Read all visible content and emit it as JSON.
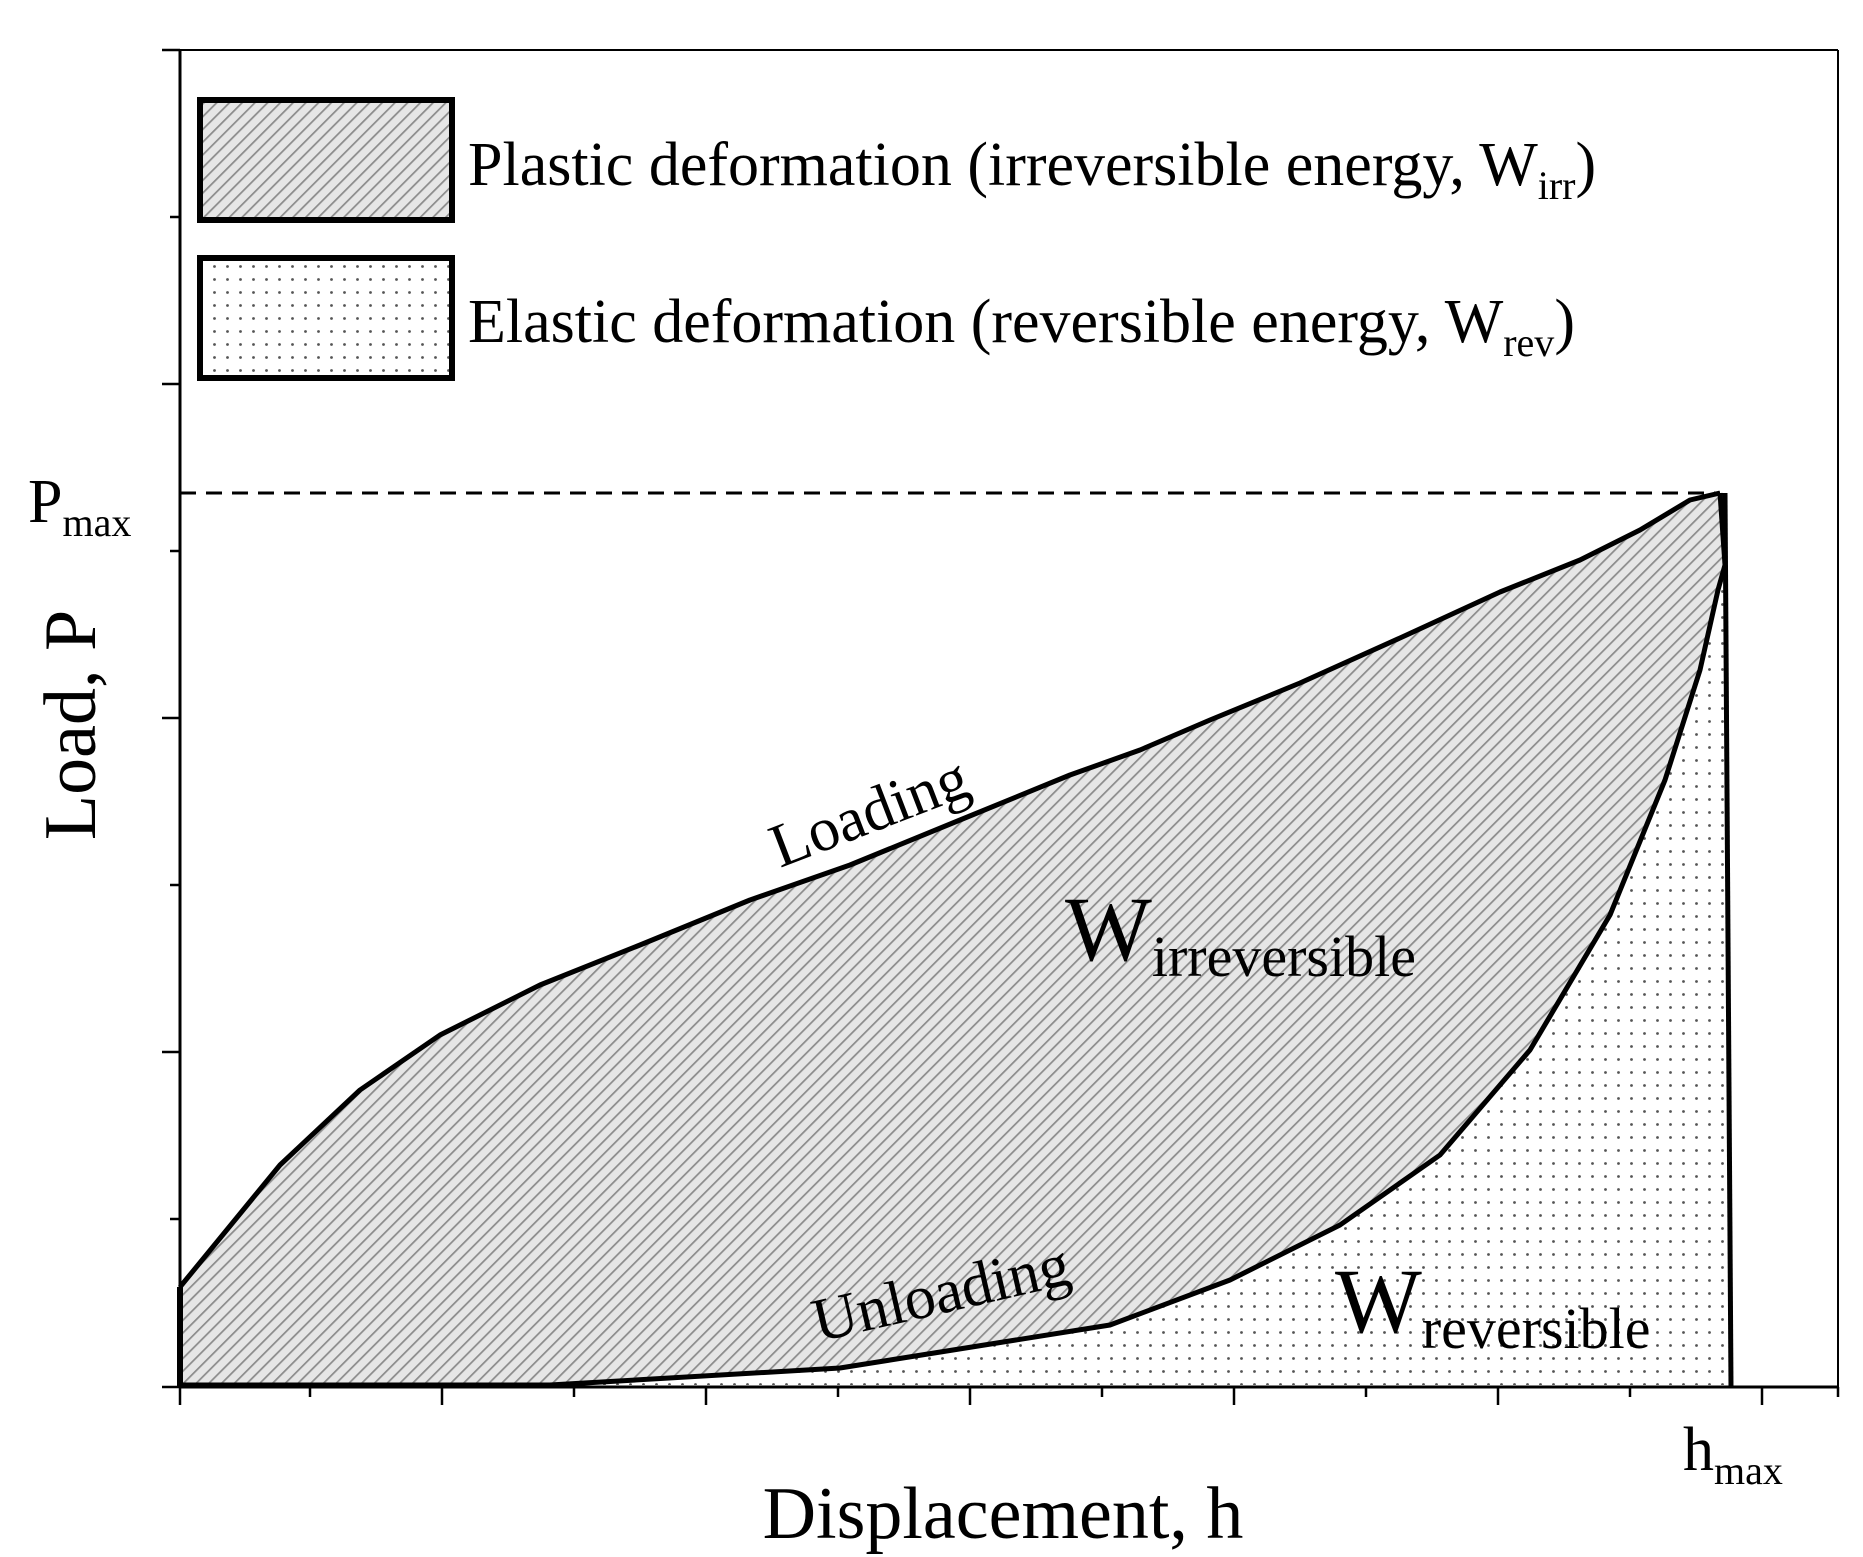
{
  "axes": {
    "y_label": "Load, P",
    "x_label": "Displacement, h",
    "p_max_main": "P",
    "p_max_sub": "max",
    "h_max_main": "h",
    "h_max_sub": "max"
  },
  "legend": {
    "plastic": {
      "text": "Plastic deformation (irreversible energy, W",
      "sub": "irr",
      "close": ")"
    },
    "elastic": {
      "text": "Elastic deformation (reversible energy, W",
      "sub": "rev",
      "close": ")"
    }
  },
  "curves": {
    "loading_label": "Loading",
    "unloading_label": "Unloading"
  },
  "regions": {
    "irreversible_main": "W",
    "irreversible_sub": "irreversible",
    "reversible_main": "W",
    "reversible_sub": "reversible"
  },
  "colors": {
    "stroke": "#000000",
    "hatch": "#8c8c8c",
    "hatch_bg": "#e6e6e6",
    "dots": "#555555"
  }
}
